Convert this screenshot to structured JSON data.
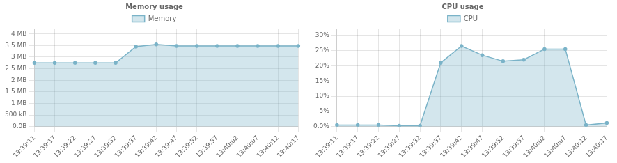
{
  "chart_data": [
    {
      "type": "line",
      "title": "Memory usage",
      "categories": [
        "13:39:11",
        "13:39:17",
        "13:39:22",
        "13:39:27",
        "13:39:32",
        "13:39:37",
        "13:39:42",
        "13:39:47",
        "13:39:52",
        "13:39:57",
        "13:40:02",
        "13:40:07",
        "13:40:12",
        "13:40:17"
      ],
      "series": [
        {
          "name": "Memory",
          "color": "#7ab3c8",
          "values": [
            2.75,
            2.75,
            2.75,
            2.75,
            2.75,
            3.45,
            3.55,
            3.48,
            3.48,
            3.48,
            3.48,
            3.48,
            3.48,
            3.48
          ]
        }
      ],
      "ylim": [
        0,
        4.2
      ],
      "yticks": [
        {
          "value": 0.0,
          "label": "0.0B"
        },
        {
          "value": 0.5,
          "label": "500 kB"
        },
        {
          "value": 1.0,
          "label": "1 MB"
        },
        {
          "value": 1.5,
          "label": "1.5 MB"
        },
        {
          "value": 2.0,
          "label": "2 MB"
        },
        {
          "value": 2.5,
          "label": "2.5 MB"
        },
        {
          "value": 3.0,
          "label": "3 MB"
        },
        {
          "value": 3.5,
          "label": "3.5 MB"
        },
        {
          "value": 4.0,
          "label": "4 MB"
        }
      ],
      "grid": true,
      "legend": "top"
    },
    {
      "type": "line",
      "title": "CPU usage",
      "categories": [
        "13:39:11",
        "13:39:17",
        "13:39:22",
        "13:39:27",
        "13:39:32",
        "13:39:37",
        "13:39:42",
        "13:39:47",
        "13:39:52",
        "13:39:57",
        "13:40:02",
        "13:40:07",
        "13:40:12",
        "13:40:17"
      ],
      "series": [
        {
          "name": "CPU",
          "color": "#7ab3c8",
          "values": [
            0.5,
            0.5,
            0.5,
            0.3,
            0.3,
            21.0,
            26.5,
            23.5,
            21.5,
            22.0,
            25.5,
            25.5,
            0.5,
            1.2
          ]
        }
      ],
      "ylim": [
        0,
        32
      ],
      "yticks": [
        {
          "value": 0,
          "label": "0.0%"
        },
        {
          "value": 5,
          "label": "5%"
        },
        {
          "value": 10,
          "label": "10%"
        },
        {
          "value": 15,
          "label": "15%"
        },
        {
          "value": 20,
          "label": "20%"
        },
        {
          "value": 25,
          "label": "25%"
        },
        {
          "value": 30,
          "label": "30%"
        }
      ],
      "grid": true,
      "legend": "top"
    }
  ]
}
